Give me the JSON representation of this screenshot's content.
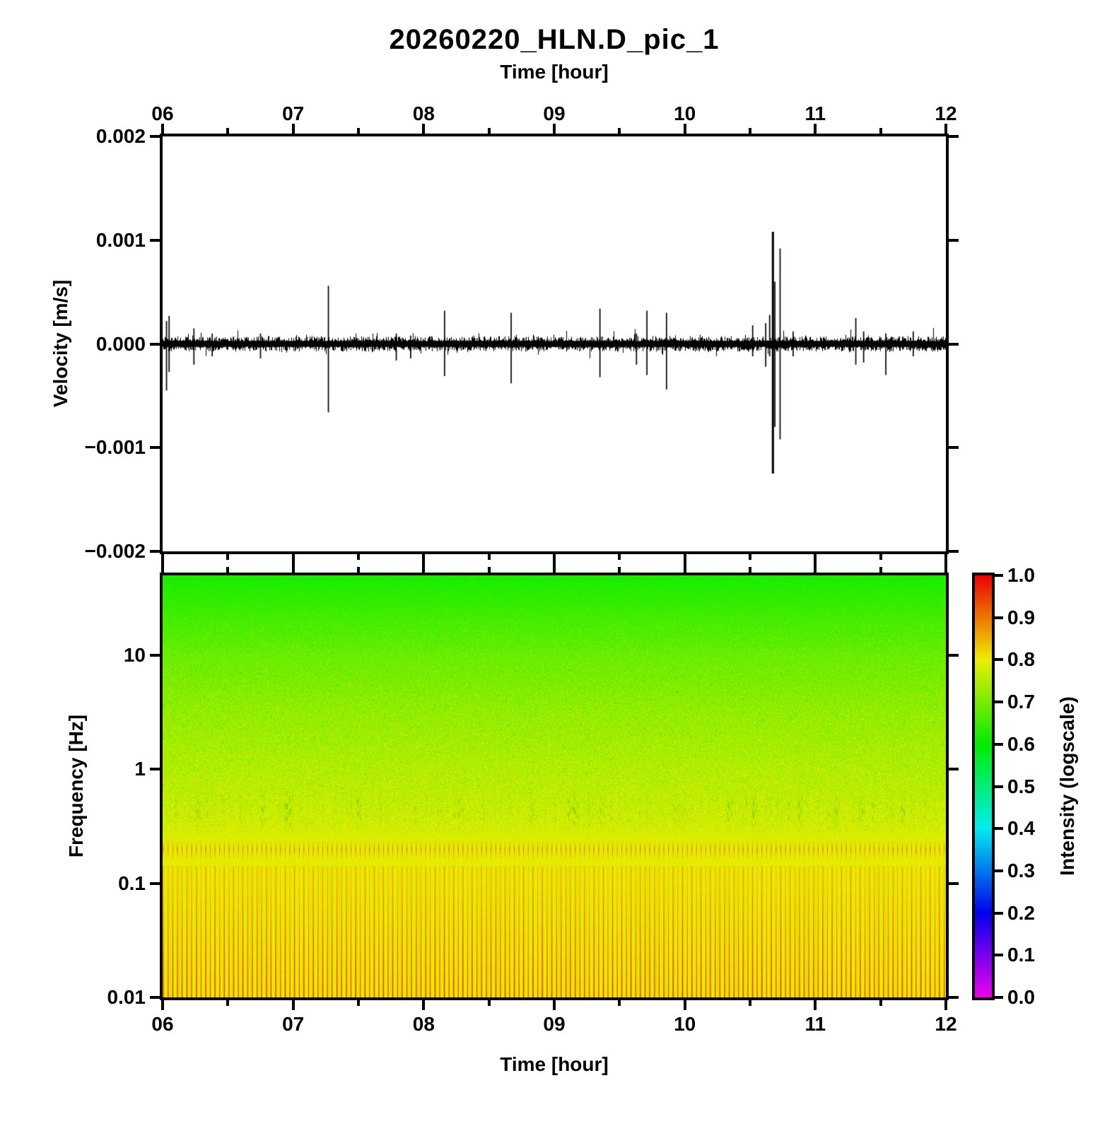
{
  "title": "20260220_HLN.D_pic_1",
  "waveform_panel": {
    "xlabel": "Time [hour]",
    "ylabel": "Velocity [m/s]",
    "x_tick_labels": [
      "06",
      "07",
      "08",
      "09",
      "10",
      "11",
      "12"
    ],
    "x_tick_values": [
      6,
      7,
      8,
      9,
      10,
      11,
      12
    ],
    "y_tick_labels": [
      "0.002",
      "0.001",
      "0.000",
      "−0.001",
      "−0.002"
    ],
    "y_tick_values": [
      0.002,
      0.001,
      0,
      -0.001,
      -0.002
    ],
    "xlim": [
      6,
      12
    ],
    "ylim": [
      -0.002,
      0.002
    ]
  },
  "spectrogram_panel": {
    "xlabel": "Time [hour]",
    "ylabel": "Frequency [Hz]",
    "x_tick_labels": [
      "06",
      "07",
      "08",
      "09",
      "10",
      "11",
      "12"
    ],
    "x_tick_values": [
      6,
      7,
      8,
      9,
      10,
      11,
      12
    ],
    "y_tick_labels": [
      "10",
      "1",
      "0.1",
      "0.01"
    ],
    "y_tick_values": [
      10,
      1,
      0.1,
      0.01
    ],
    "xlim": [
      6,
      12
    ],
    "ylim": [
      0.01,
      50
    ]
  },
  "colorbar": {
    "label": "Intensity (logscale)",
    "tick_labels": [
      "1.0",
      "0.9",
      "0.8",
      "0.7",
      "0.6",
      "0.5",
      "0.4",
      "0.3",
      "0.2",
      "0.1",
      "0.0"
    ],
    "tick_values": [
      1.0,
      0.9,
      0.8,
      0.7,
      0.6,
      0.5,
      0.4,
      0.3,
      0.2,
      0.1,
      0.0
    ],
    "palette": [
      {
        "value": 0.0,
        "color": "#ed00ed"
      },
      {
        "value": 0.1,
        "color": "#7700ed"
      },
      {
        "value": 0.2,
        "color": "#0000ed"
      },
      {
        "value": 0.3,
        "color": "#0077ed"
      },
      {
        "value": 0.4,
        "color": "#00eded"
      },
      {
        "value": 0.5,
        "color": "#00ed77"
      },
      {
        "value": 0.6,
        "color": "#00ed00"
      },
      {
        "value": 0.7,
        "color": "#77ed00"
      },
      {
        "value": 0.8,
        "color": "#eded00"
      },
      {
        "value": 0.9,
        "color": "#ed7700"
      },
      {
        "value": 1.0,
        "color": "#ed0000"
      }
    ]
  },
  "chart_data": [
    {
      "type": "line",
      "name": "seismic-velocity-waveform",
      "title": "20260220_HLN.D_pic_1",
      "xlabel": "Time [hour]",
      "ylabel": "Velocity [m/s]",
      "xlim": [
        6,
        12
      ],
      "ylim": [
        -0.002,
        0.002
      ],
      "line_color": "#000000",
      "background_noise_amplitude_ms": 5e-05,
      "events": [
        {
          "t": 6.03,
          "up": 0.00022,
          "down": 0.00045
        },
        {
          "t": 6.05,
          "up": 0.00027,
          "down": 0.00027
        },
        {
          "t": 6.24,
          "up": 0.00015,
          "down": 0.0002
        },
        {
          "t": 6.38,
          "up": 0.0001,
          "down": 0.00012
        },
        {
          "t": 6.75,
          "up": 0.0001,
          "down": 0.00014
        },
        {
          "t": 7.27,
          "up": 0.00056,
          "down": 0.00066
        },
        {
          "t": 7.79,
          "up": 0.0001,
          "down": 0.00016
        },
        {
          "t": 7.9,
          "up": 8e-05,
          "down": 0.00014
        },
        {
          "t": 8.16,
          "up": 0.00032,
          "down": 0.00031
        },
        {
          "t": 8.67,
          "up": 0.0003,
          "down": 0.00038
        },
        {
          "t": 9.35,
          "up": 0.00034,
          "down": 0.00032
        },
        {
          "t": 9.63,
          "up": 0.0001,
          "down": 0.0002
        },
        {
          "t": 9.71,
          "up": 0.00032,
          "down": 0.0003
        },
        {
          "t": 9.86,
          "up": 0.0003,
          "down": 0.00044
        },
        {
          "t": 10.52,
          "up": 0.00018,
          "down": 0.00012
        },
        {
          "t": 10.62,
          "up": 0.0002,
          "down": 0.00022
        },
        {
          "t": 10.65,
          "up": 0.00028,
          "down": 0.00012
        },
        {
          "t": 10.675,
          "up": 0.00108,
          "down": 0.00125,
          "lw": 3
        },
        {
          "t": 10.69,
          "up": 0.0006,
          "down": 0.0008
        },
        {
          "t": 10.73,
          "up": 0.00092,
          "down": 0.00092
        },
        {
          "t": 10.83,
          "up": 0.00012,
          "down": 0.00012
        },
        {
          "t": 11.31,
          "up": 0.00025,
          "down": 0.0002
        },
        {
          "t": 11.37,
          "up": 0.00012,
          "down": 0.00018
        },
        {
          "t": 11.54,
          "up": 0.0001,
          "down": 0.0003
        },
        {
          "t": 11.75,
          "up": 0.00012,
          "down": 0.00012
        }
      ]
    },
    {
      "type": "heatmap",
      "name": "spectrogram",
      "xlabel": "Time [hour]",
      "ylabel": "Frequency [Hz]",
      "zlabel": "Intensity (logscale)",
      "xlim": [
        6,
        12
      ],
      "ylim_hz": [
        0.01,
        50
      ],
      "y_scale": "log",
      "intensity_range": [
        0.0,
        1.0
      ],
      "background_intensity_profile": [
        {
          "freq_hz": 50,
          "intensity": 0.62
        },
        {
          "freq_hz": 10,
          "intensity": 0.69
        },
        {
          "freq_hz": 3,
          "intensity": 0.72
        },
        {
          "freq_hz": 1,
          "intensity": 0.75
        },
        {
          "freq_hz": 0.3,
          "intensity": 0.78
        },
        {
          "freq_hz": 0.1,
          "intensity": 0.8
        },
        {
          "freq_hz": 0.01,
          "intensity": 0.8
        }
      ],
      "features": [
        {
          "freq_range_hz": [
            20,
            50
          ],
          "description": "uniform green band, lowest intensity (~0.62)"
        },
        {
          "freq_range_hz": [
            1,
            20
          ],
          "description": "yellow-green with fine speckle noise"
        },
        {
          "freq_range_hz": [
            0.3,
            1.0
          ],
          "description": "scattered dark-green vertical streaks (transient dips)"
        },
        {
          "freq_range_hz": [
            0.16,
            0.25
          ],
          "description": "orange-red vertical striping, intensity ~0.85-0.92 (microseism band)"
        },
        {
          "freq_range_hz": [
            0.01,
            0.15
          ],
          "description": "bright yellow with fine vertical stripes; red lines strengthen toward 0.01 Hz"
        }
      ]
    }
  ]
}
